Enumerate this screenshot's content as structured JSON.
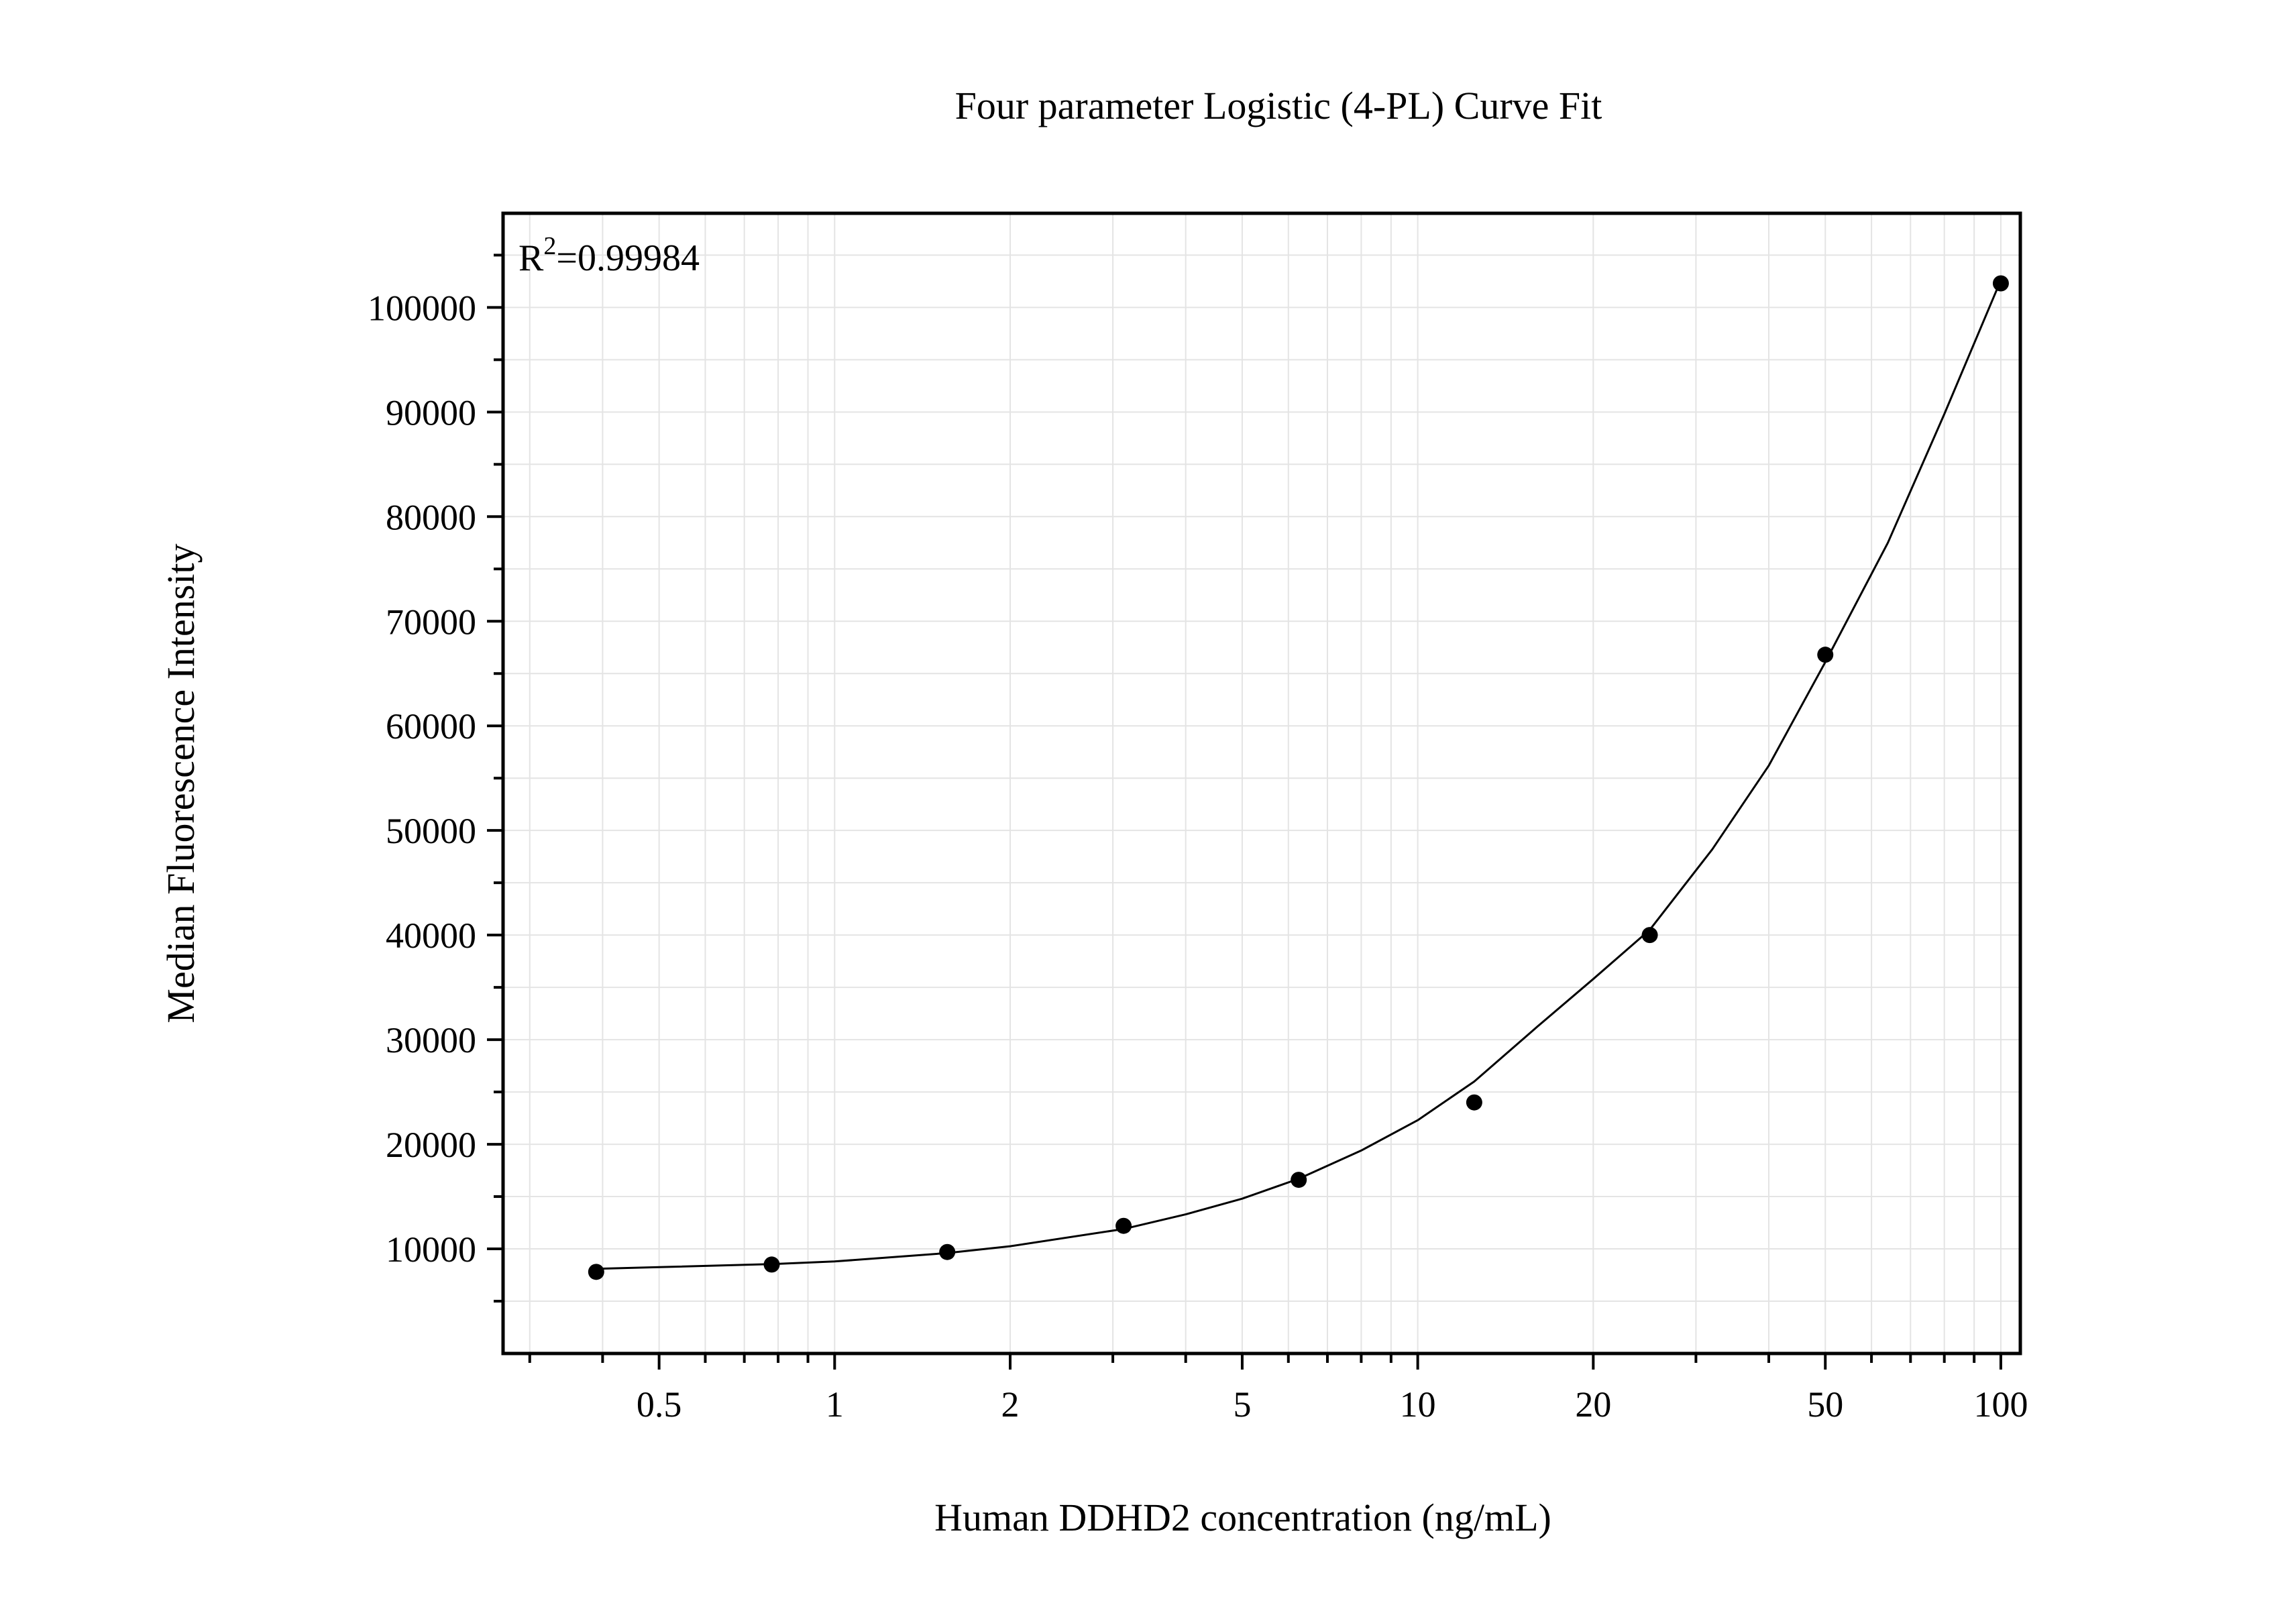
{
  "chart_data": {
    "type": "scatter",
    "title": "Four parameter Logistic (4-PL) Curve Fit",
    "xlabel": "Human DDHD2 concentration (ng/mL)",
    "ylabel": "Median Fluorescence Intensity",
    "x_scale": "log",
    "xlim": [
      0.27,
      108
    ],
    "ylim": [
      0,
      109000
    ],
    "x_ticks": [
      0.5,
      1,
      2,
      5,
      10,
      20,
      50,
      100
    ],
    "x_tick_labels": [
      "0.5",
      "1",
      "2",
      "5",
      "10",
      "20",
      "50",
      "100"
    ],
    "y_ticks": [
      10000,
      20000,
      30000,
      40000,
      50000,
      60000,
      70000,
      80000,
      90000,
      100000
    ],
    "y_tick_labels": [
      "10000",
      "20000",
      "30000",
      "40000",
      "50000",
      "60000",
      "70000",
      "80000",
      "90000",
      "100000"
    ],
    "grid": true,
    "series": [
      {
        "type": "scatter",
        "x": [
          0.39,
          0.78,
          1.56,
          3.13,
          6.25,
          12.5,
          25,
          50,
          100
        ],
        "y": [
          7800,
          8500,
          9700,
          12200,
          16600,
          24000,
          40000,
          66800,
          102300
        ]
      },
      {
        "type": "line",
        "x": [
          0.39,
          0.5,
          0.78,
          1,
          1.56,
          2,
          3.13,
          4,
          5,
          6.25,
          8,
          10,
          12.5,
          16,
          20,
          25,
          32,
          40,
          50,
          64,
          80,
          100
        ],
        "y": [
          8100,
          8250,
          8550,
          8800,
          9600,
          10250,
          11900,
          13300,
          14800,
          16700,
          19400,
          22300,
          26000,
          31200,
          35800,
          40500,
          48200,
          56200,
          66100,
          77500,
          89800,
          102600
        ]
      }
    ],
    "annotations": [
      {
        "base": "R",
        "sup": "2",
        "text": "=0.99984"
      }
    ]
  }
}
